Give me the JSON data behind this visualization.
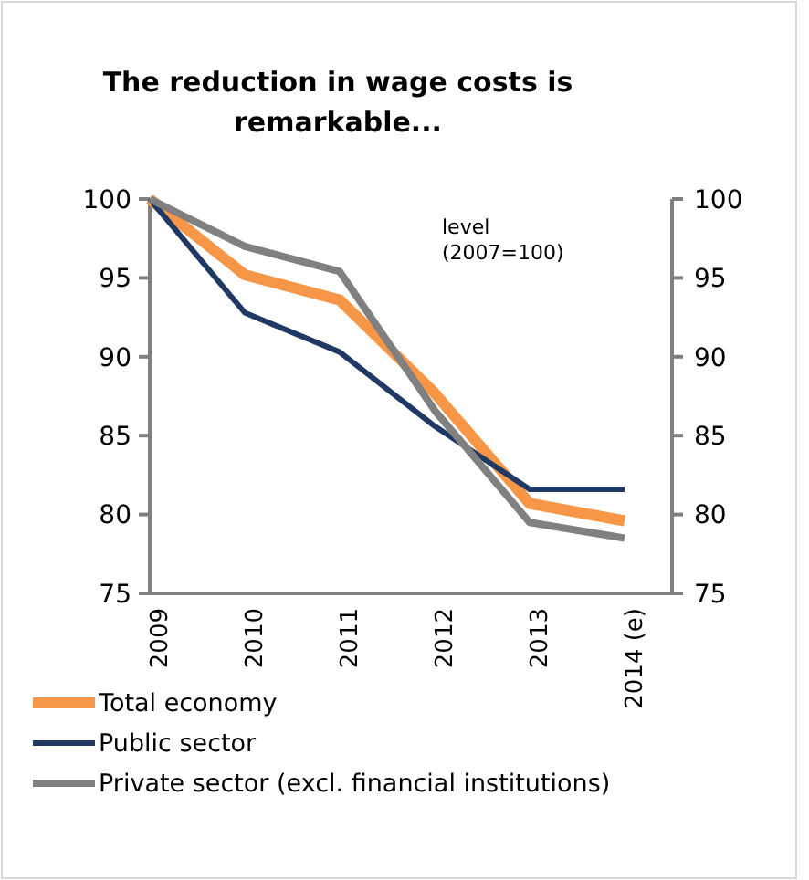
{
  "chart_data": {
    "type": "line",
    "title": "The reduction in wage costs is remarkable...",
    "categories": [
      "2009",
      "2010",
      "2011",
      "2012",
      "2013",
      "2014 (e)"
    ],
    "series": [
      {
        "name": "Total economy",
        "color": "#f79646",
        "values": [
          100,
          95.2,
          93.6,
          87.7,
          80.7,
          79.6
        ]
      },
      {
        "name": "Public sector",
        "color": "#1f3864",
        "values": [
          100,
          92.8,
          90.3,
          85.6,
          81.6,
          81.6
        ]
      },
      {
        "name": "Private sector (excl. financial institutions)",
        "color": "#808080",
        "values": [
          100,
          97.0,
          95.4,
          86.6,
          79.5,
          78.5
        ]
      }
    ],
    "ylim": [
      75,
      100
    ],
    "yticks": [
      75,
      80,
      85,
      90,
      95,
      100
    ],
    "y2lim": [
      75,
      100
    ],
    "y2ticks": [
      75,
      80,
      85,
      90,
      95,
      100
    ],
    "annotations": [
      "level\n(2007=100)"
    ],
    "grid": false,
    "legend": "bottom",
    "line_style": "solid"
  }
}
